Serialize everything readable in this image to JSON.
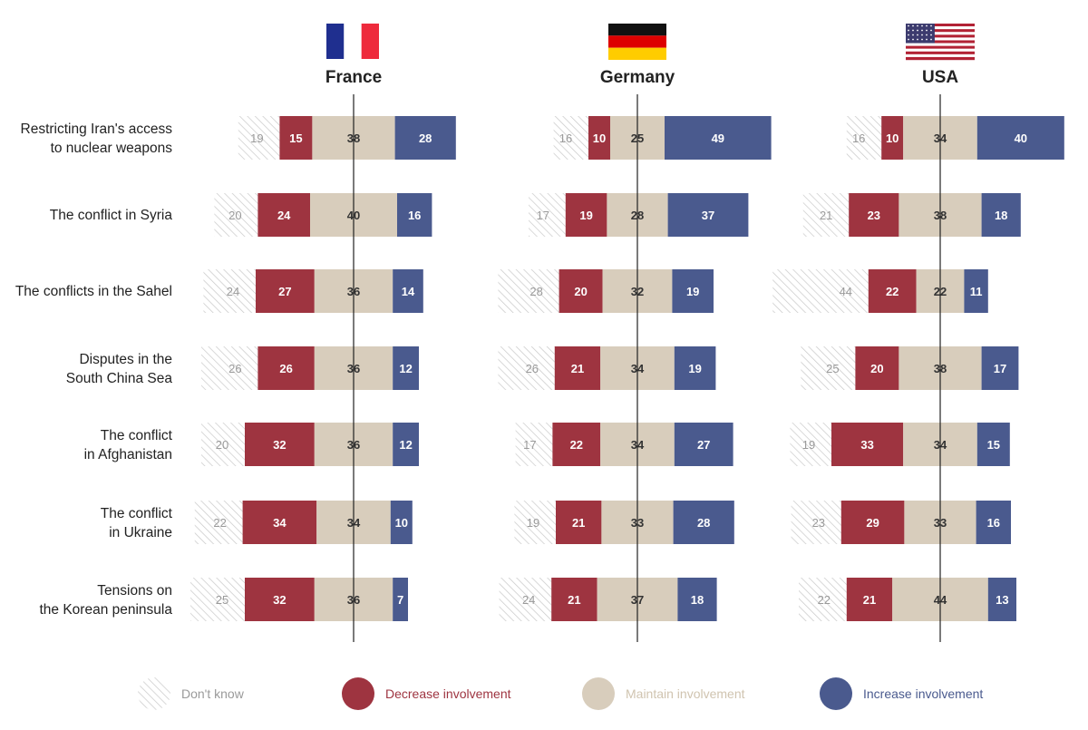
{
  "chart_data": {
    "type": "bar",
    "stacked": "diverging",
    "categories": [
      [
        "Restricting Iran's access",
        "to nuclear weapons"
      ],
      [
        "The conflict in Syria"
      ],
      [
        "The conflicts in the Sahel"
      ],
      [
        "Disputes in the",
        "South China Sea"
      ],
      [
        "The conflict",
        "in Afghanistan"
      ],
      [
        "The conflict",
        "in Ukraine"
      ],
      [
        "Tensions on",
        "the Korean peninsula"
      ]
    ],
    "panels": [
      {
        "country": "France",
        "flag": "france",
        "dont_know": [
          19,
          20,
          24,
          26,
          20,
          22,
          25
        ],
        "decrease": [
          15,
          24,
          27,
          26,
          32,
          34,
          32
        ],
        "maintain": [
          38,
          40,
          36,
          36,
          36,
          34,
          36
        ],
        "increase": [
          28,
          16,
          14,
          12,
          12,
          10,
          7
        ]
      },
      {
        "country": "Germany",
        "flag": "germany",
        "dont_know": [
          16,
          17,
          28,
          26,
          17,
          19,
          24
        ],
        "decrease": [
          10,
          19,
          20,
          21,
          22,
          21,
          21
        ],
        "maintain": [
          25,
          28,
          32,
          34,
          34,
          33,
          37
        ],
        "increase": [
          49,
          37,
          19,
          19,
          27,
          28,
          18
        ]
      },
      {
        "country": "USA",
        "flag": "usa",
        "dont_know": [
          16,
          21,
          44,
          25,
          19,
          23,
          22
        ],
        "decrease": [
          10,
          23,
          22,
          20,
          33,
          29,
          21
        ],
        "maintain": [
          34,
          38,
          22,
          38,
          34,
          33,
          44
        ],
        "increase": [
          40,
          18,
          11,
          17,
          15,
          16,
          13
        ]
      }
    ],
    "legend": [
      {
        "key": "dont_know",
        "label": "Don't know",
        "color": "#9a9a9a",
        "pattern": "hatch"
      },
      {
        "key": "decrease",
        "label": "Decrease involvement",
        "color": "#9e3440"
      },
      {
        "key": "maintain",
        "label": "Maintain involvement",
        "color": "#d8cdbc"
      },
      {
        "key": "increase",
        "label": "Increase involvement",
        "color": "#4a5a8e"
      }
    ],
    "colors": {
      "decrease": "#9e3440",
      "maintain": "#d8cdbc",
      "increase": "#4a5a8e",
      "hatch": "#c9c9c9",
      "dont_know_text": "#9a9a9a",
      "maintain_legend_text": "#d0c4b0"
    },
    "legend_placement": "bottom",
    "grid": false
  }
}
